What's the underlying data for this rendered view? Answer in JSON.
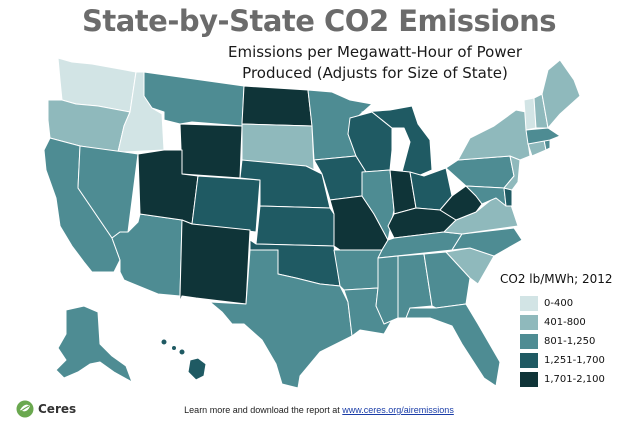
{
  "title": "State-by-State CO2 Emissions",
  "subtitle_line1": "Emissions per Megawatt-Hour of Power",
  "subtitle_line2": "Produced (Adjusts for Size of State)",
  "legend": {
    "title": "CO2 lb/MWh; 2012",
    "items": [
      {
        "label": "0-400",
        "color": "#d2e4e5"
      },
      {
        "label": "401-800",
        "color": "#8fb9bc"
      },
      {
        "label": "801-1,250",
        "color": "#4e8c93"
      },
      {
        "label": "1,251-1,700",
        "color": "#1f5a63"
      },
      {
        "label": "1,701-2,100",
        "color": "#0f3438"
      }
    ]
  },
  "state_classes": {
    "WA": 0,
    "OR": 1,
    "CA": 2,
    "ID": 0,
    "NV": 2,
    "AZ": 2,
    "MT": 2,
    "WY": 4,
    "UT": 4,
    "CO": 3,
    "NM": 4,
    "ND": 4,
    "SD": 1,
    "NE": 3,
    "KS": 3,
    "OK": 3,
    "TX": 2,
    "MN": 2,
    "IA": 3,
    "MO": 4,
    "AR": 2,
    "LA": 2,
    "WI": 3,
    "IL": 2,
    "MI": 3,
    "IN": 4,
    "OH": 3,
    "KY": 4,
    "TN": 2,
    "MS": 2,
    "AL": 2,
    "GA": 2,
    "FL": 2,
    "SC": 1,
    "NC": 2,
    "VA": 1,
    "WV": 4,
    "MD": 2,
    "DE": 3,
    "PA": 2,
    "NY": 1,
    "NJ": 1,
    "CT": 1,
    "RI": 2,
    "MA": 2,
    "VT": 0,
    "NH": 1,
    "ME": 1,
    "AK": 2,
    "HI": 3
  },
  "brand": "Ceres",
  "footer_text": "Learn more and download the report at ",
  "footer_link": "www.ceres.org/airemissions"
}
